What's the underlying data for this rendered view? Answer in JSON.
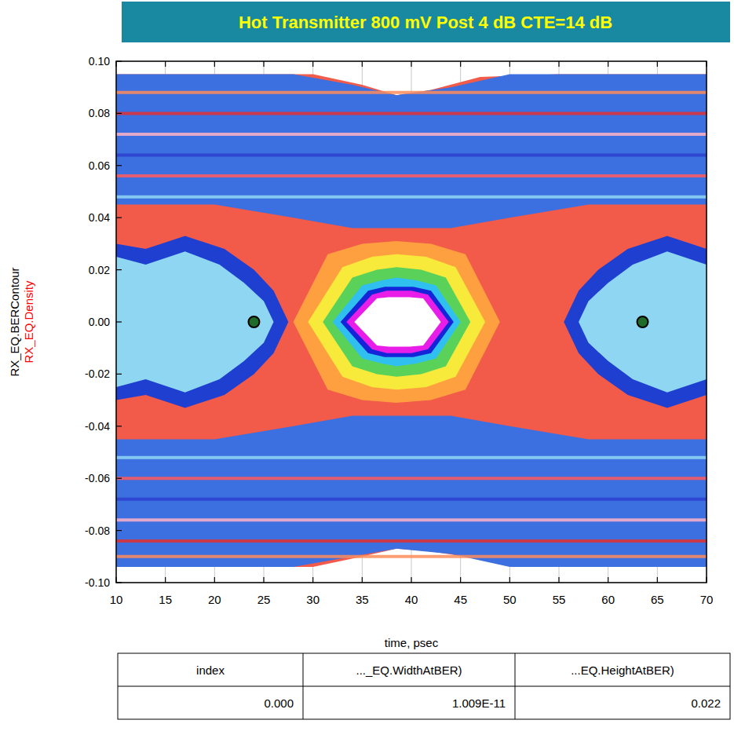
{
  "chart_data": {
    "type": "eye",
    "title": "Hot Transmitter 800 mV Post 4 dB CTE=14 dB",
    "xlabel": "time, psec",
    "ylabels": [
      {
        "text": "RX_EQ.BERContour",
        "color": "#000000"
      },
      {
        "text": "RX_EQ.Density",
        "color": "#ff0000"
      }
    ],
    "xlim": [
      10,
      70
    ],
    "xticks": [
      10,
      15,
      20,
      25,
      30,
      35,
      40,
      45,
      50,
      55,
      60,
      65,
      70
    ],
    "ylim": [
      -0.1,
      0.1
    ],
    "yticks": [
      {
        "value": 0.1,
        "label": "0.10"
      },
      0.08,
      0.06,
      0.04,
      0.02,
      {
        "value": 0,
        "label": "0.00"
      },
      -0.02,
      -0.04,
      -0.06,
      -0.08,
      {
        "value": -0.1,
        "label": "-0.10"
      }
    ],
    "grid": true,
    "regions": [
      {
        "color": "#f25a4a",
        "x": [
          10,
          20,
          30,
          35,
          38.5,
          42,
          47,
          55,
          65,
          70,
          70,
          65,
          55,
          47,
          42,
          38.5,
          35,
          30,
          20,
          10
        ],
        "y": [
          0.095,
          0.095,
          0.095,
          0.091,
          0.087,
          0.089,
          0.094,
          0.095,
          0.095,
          0.095,
          -0.094,
          -0.094,
          -0.094,
          -0.091,
          -0.088,
          -0.087,
          -0.09,
          -0.094,
          -0.094,
          -0.094
        ]
      },
      {
        "color": "#3c6fe0",
        "x": [
          10,
          20,
          28,
          34,
          38.5,
          44,
          50,
          58,
          70,
          70,
          58,
          50,
          44,
          38.5,
          34,
          28,
          20,
          10
        ],
        "y": [
          0.095,
          0.095,
          0.095,
          0.091,
          0.087,
          0.09,
          0.095,
          0.095,
          0.095,
          0.045,
          0.045,
          0.04,
          0.036,
          0.036,
          0.036,
          0.04,
          0.045,
          0.045
        ]
      },
      {
        "color": "#3c6fe0",
        "x": [
          10,
          20,
          28,
          34,
          38.5,
          44,
          50,
          58,
          70,
          70,
          58,
          50,
          44,
          38.5,
          34,
          28,
          20,
          10
        ],
        "y": [
          -0.094,
          -0.094,
          -0.094,
          -0.09,
          -0.087,
          -0.089,
          -0.094,
          -0.094,
          -0.094,
          -0.045,
          -0.045,
          -0.04,
          -0.036,
          -0.036,
          -0.036,
          -0.04,
          -0.045,
          -0.045
        ]
      },
      {
        "color": "#1e3fd0",
        "x": [
          10,
          13,
          17,
          21,
          24,
          26,
          27.5,
          26,
          24,
          21,
          17,
          13,
          10
        ],
        "y": [
          0.03,
          0.028,
          0.033,
          0.028,
          0.02,
          0.012,
          0,
          -0.012,
          -0.02,
          -0.028,
          -0.033,
          -0.028,
          -0.03
        ]
      },
      {
        "color": "#8ed6f2",
        "x": [
          10,
          13,
          17,
          20.5,
          23,
          25,
          26,
          25,
          23,
          20.5,
          17,
          13,
          10
        ],
        "y": [
          0.025,
          0.022,
          0.027,
          0.022,
          0.015,
          0.008,
          0,
          -0.008,
          -0.015,
          -0.022,
          -0.027,
          -0.022,
          -0.025
        ]
      },
      {
        "color": "#1e3fd0",
        "x": [
          73,
          70,
          66,
          62,
          59,
          57,
          55.5,
          57,
          59,
          62,
          66,
          70,
          73
        ],
        "y": [
          0.03,
          0.028,
          0.033,
          0.028,
          0.02,
          0.012,
          0,
          -0.012,
          -0.02,
          -0.028,
          -0.033,
          -0.028,
          -0.03
        ]
      },
      {
        "color": "#8ed6f2",
        "x": [
          73,
          70,
          66,
          62.5,
          60,
          58,
          57,
          58,
          60,
          62.5,
          66,
          70,
          73
        ],
        "y": [
          0.025,
          0.022,
          0.027,
          0.022,
          0.015,
          0.008,
          0,
          -0.008,
          -0.015,
          -0.022,
          -0.027,
          -0.022,
          -0.025
        ]
      },
      {
        "color": "#ffa040",
        "x": [
          28,
          31.5,
          35,
          38.5,
          42,
          45.5,
          49,
          45.5,
          42,
          38.5,
          35,
          31.5
        ],
        "y": [
          0,
          0.026,
          0.03,
          0.031,
          0.03,
          0.026,
          0,
          -0.026,
          -0.03,
          -0.031,
          -0.03,
          -0.026
        ]
      },
      {
        "color": "#f7ea3a",
        "x": [
          29.5,
          33,
          36,
          38.5,
          41.5,
          44.5,
          47.5,
          44.5,
          41.5,
          38.5,
          36,
          33
        ],
        "y": [
          0,
          0.021,
          0.025,
          0.026,
          0.025,
          0.021,
          0,
          -0.021,
          -0.025,
          -0.026,
          -0.025,
          -0.021
        ]
      },
      {
        "color": "#5ad25a",
        "x": [
          31,
          34,
          36.5,
          38.5,
          41,
          43.5,
          46,
          43.5,
          41,
          38.5,
          36.5,
          34
        ],
        "y": [
          0,
          0.017,
          0.02,
          0.021,
          0.02,
          0.017,
          0,
          -0.017,
          -0.02,
          -0.021,
          -0.02,
          -0.017
        ]
      },
      {
        "color": "#30c0f0",
        "x": [
          32,
          35,
          37,
          38.5,
          40.5,
          42.5,
          45,
          42.5,
          40.5,
          38.5,
          37,
          35
        ],
        "y": [
          0,
          0.014,
          0.016,
          0.017,
          0.016,
          0.014,
          0,
          -0.014,
          -0.016,
          -0.017,
          -0.016,
          -0.014
        ]
      },
      {
        "color": "#1424d8",
        "x": [
          32.8,
          35.6,
          37.3,
          38.5,
          40.2,
          42,
          44.3,
          42,
          40.2,
          38.5,
          37.3,
          35.6
        ],
        "y": [
          0,
          0.012,
          0.0135,
          0.0135,
          0.0135,
          0.012,
          0,
          -0.012,
          -0.0135,
          -0.0135,
          -0.0135,
          -0.012
        ]
      },
      {
        "color": "#e81ee8",
        "x": [
          33.4,
          36,
          37.5,
          38.5,
          40,
          41.7,
          43.8,
          41.7,
          40,
          38.5,
          37.5,
          36
        ],
        "y": [
          0,
          0.0105,
          0.012,
          0.012,
          0.012,
          0.0105,
          0,
          -0.0105,
          -0.012,
          -0.012,
          -0.012,
          -0.0105
        ]
      },
      {
        "color": "#ffffff",
        "x": [
          34.2,
          36.5,
          37.7,
          38.5,
          39.8,
          41.2,
          43,
          41.2,
          39.8,
          38.5,
          37.7,
          36.5
        ],
        "y": [
          0,
          0.009,
          0.0095,
          0.0095,
          0.0095,
          0.009,
          0,
          -0.009,
          -0.0095,
          -0.0095,
          -0.0095,
          -0.009
        ]
      }
    ],
    "stripes": [
      {
        "y": 0.088,
        "color": "#ff8c5a"
      },
      {
        "y": 0.08,
        "color": "#e03030"
      },
      {
        "y": 0.072,
        "color": "#ffb3c6"
      },
      {
        "y": 0.064,
        "color": "#2b3fcf"
      },
      {
        "y": 0.056,
        "color": "#ff5a5a"
      },
      {
        "y": 0.048,
        "color": "#8fd8f5"
      },
      {
        "y": -0.052,
        "color": "#8fd8f5"
      },
      {
        "y": -0.06,
        "color": "#ff5a5a"
      },
      {
        "y": -0.068,
        "color": "#2b3fcf"
      },
      {
        "y": -0.076,
        "color": "#ffb3c6"
      },
      {
        "y": -0.084,
        "color": "#e03030"
      },
      {
        "y": -0.09,
        "color": "#ff8c5a"
      }
    ],
    "dots": {
      "x": [
        24,
        63.5
      ],
      "y": [
        0,
        0
      ],
      "color": "#1f6b2a"
    },
    "table": {
      "columns": [
        "index",
        "..._EQ.WidthAtBER)",
        "...EQ.HeightAtBER)"
      ],
      "rows": [
        [
          "0.000",
          "1.009E-11",
          "0.022"
        ]
      ]
    }
  }
}
